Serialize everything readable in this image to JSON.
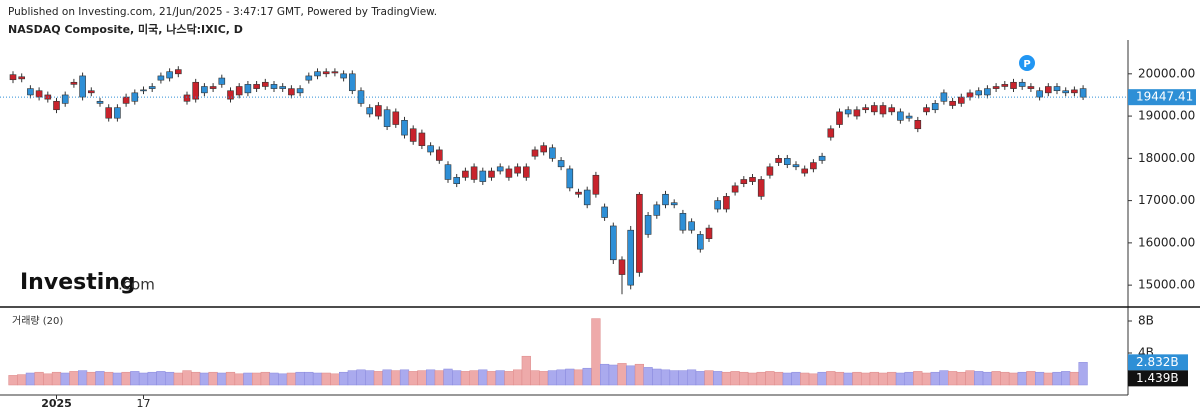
{
  "chart_data": {
    "type": "candlestick",
    "published": "Published on Investing.com, 21/Jun/2025 - 3:47:17 GMT, Powered by TradingView.",
    "title": "NASDAQ Composite, 미국, 나스닥:IXIC, D",
    "logo": {
      "main": "Investing",
      "suffix": ".com"
    },
    "annotation": "P",
    "up_color": "#c8232c",
    "down_color": "#2e8fd6",
    "categories": [
      null,
      null,
      null,
      null,
      null,
      "2025",
      null,
      null,
      null,
      null,
      null,
      null,
      null,
      null,
      null,
      "17",
      null,
      null,
      null,
      null,
      null,
      null,
      null,
      null,
      null,
      null,
      null,
      null,
      null,
      null,
      null,
      null,
      null,
      null,
      null,
      null,
      null,
      null,
      null,
      null,
      null,
      null,
      null,
      null,
      null,
      null,
      null,
      null,
      null,
      null,
      null,
      null,
      null,
      null,
      null,
      null,
      null,
      null,
      null,
      null,
      null,
      null,
      null,
      null,
      null,
      null,
      null,
      null,
      null,
      null,
      null,
      null,
      null,
      null,
      null,
      null,
      null,
      null,
      null,
      null,
      null,
      null,
      null,
      null,
      null,
      null,
      null,
      null,
      null,
      null,
      null,
      null,
      null,
      null,
      null,
      null,
      null,
      null,
      null,
      null,
      null,
      null,
      null,
      null,
      null,
      null,
      null,
      null,
      null,
      null,
      null,
      null,
      null,
      null,
      null,
      null,
      null,
      null,
      null,
      null,
      null,
      null,
      null,
      null
    ],
    "open": [
      19860,
      19880,
      19650,
      19450,
      19400,
      19150,
      19500,
      19750,
      19950,
      19550,
      19350,
      18950,
      19200,
      19300,
      19550,
      19620,
      19700,
      19950,
      20050,
      20000,
      19350,
      19400,
      19700,
      19650,
      19900,
      19400,
      19500,
      19750,
      19650,
      19700,
      19750,
      19700,
      19500,
      19650,
      19950,
      20050,
      20000,
      20020,
      20000,
      20000,
      19600,
      19200,
      19000,
      19150,
      18800,
      18900,
      18400,
      18300,
      18300,
      17950,
      17850,
      17550,
      17550,
      17500,
      17700,
      17550,
      17800,
      17550,
      17650,
      17550,
      18050,
      18150,
      18250,
      17950,
      17750,
      17150,
      17250,
      17150,
      16850,
      16400,
      15250,
      16300,
      15300,
      16650,
      16900,
      17150,
      16950,
      16700,
      16500,
      16200,
      16100,
      17000,
      16800,
      17200,
      17400,
      17450,
      17100,
      17600,
      17900,
      18000,
      17850,
      17650,
      17750,
      18050,
      18500,
      18800,
      19150,
      19000,
      19150,
      19100,
      19050,
      19100,
      19100,
      19000,
      18700,
      19100,
      19300,
      19550,
      19250,
      19300,
      19450,
      19600,
      19650,
      19650,
      19700,
      19650,
      19800,
      19650,
      19600,
      19550,
      19700,
      19600,
      19550,
      19650
    ],
    "high": [
      20060,
      20010,
      19730,
      19680,
      19580,
      19430,
      19580,
      19880,
      20030,
      19680,
      19430,
      19280,
      19280,
      19530,
      19630,
      19700,
      19780,
      20030,
      20130,
      20180,
      19580,
      19880,
      19780,
      19780,
      19980,
      19680,
      19780,
      19830,
      19830,
      19880,
      19830,
      19780,
      19730,
      19730,
      20030,
      20130,
      20130,
      20130,
      20080,
      20080,
      19680,
      19280,
      19330,
      19230,
      19180,
      18980,
      18780,
      18680,
      18380,
      18280,
      17930,
      17630,
      17780,
      17880,
      17780,
      17780,
      17880,
      17830,
      17880,
      17880,
      18280,
      18380,
      18330,
      18030,
      17830,
      17280,
      17330,
      17680,
      16930,
      16480,
      15680,
      16400,
      17200,
      16730,
      16980,
      17230,
      17030,
      16780,
      16580,
      16280,
      16430,
      17080,
      17180,
      17430,
      17580,
      17630,
      17580,
      17880,
      18080,
      18080,
      17930,
      17830,
      17980,
      18130,
      18780,
      19180,
      19230,
      19230,
      19280,
      19330,
      19330,
      19280,
      19180,
      19080,
      18980,
      19280,
      19380,
      19630,
      19430,
      19530,
      19630,
      19680,
      19730,
      19780,
      19830,
      19880,
      19880,
      19780,
      19680,
      19780,
      19780,
      19680,
      19700,
      19730
    ],
    "low": [
      19780,
      19800,
      19420,
      19370,
      19320,
      19070,
      19220,
      19670,
      19370,
      19470,
      19220,
      18870,
      18870,
      19220,
      19270,
      19520,
      19570,
      19770,
      19820,
      19920,
      19270,
      19320,
      19470,
      19570,
      19670,
      19320,
      19420,
      19470,
      19570,
      19620,
      19570,
      19570,
      19420,
      19470,
      19770,
      19870,
      19920,
      19940,
      19820,
      19520,
      19220,
      18970,
      18920,
      18670,
      18720,
      18470,
      18320,
      18220,
      18070,
      17870,
      17420,
      17320,
      17470,
      17420,
      17370,
      17470,
      17620,
      17470,
      17570,
      17470,
      17970,
      18070,
      17920,
      17720,
      17220,
      17070,
      16820,
      17070,
      16520,
      15500,
      14784,
      14900,
      15200,
      16120,
      16570,
      16820,
      16820,
      16220,
      16220,
      15770,
      16020,
      16720,
      16720,
      17120,
      17320,
      17370,
      17020,
      17520,
      17820,
      17770,
      17720,
      17570,
      17670,
      17870,
      18420,
      18720,
      18970,
      18920,
      19070,
      19020,
      18970,
      19020,
      18820,
      18870,
      18620,
      19020,
      19070,
      19270,
      19170,
      19220,
      19370,
      19420,
      19420,
      19570,
      19620,
      19570,
      19620,
      19570,
      19370,
      19470,
      19520,
      19470,
      19470,
      19380
    ],
    "close": [
      19980,
      19930,
      19500,
      19600,
      19500,
      19350,
      19300,
      19800,
      19450,
      19600,
      19300,
      19200,
      18950,
      19450,
      19350,
      19600,
      19650,
      19850,
      19900,
      20100,
      19500,
      19800,
      19550,
      19700,
      19750,
      19600,
      19700,
      19550,
      19750,
      19800,
      19650,
      19650,
      19650,
      19550,
      19850,
      19950,
      20050,
      20050,
      19900,
      19600,
      19300,
      19050,
      19250,
      18750,
      19100,
      18550,
      18700,
      18600,
      18150,
      18200,
      17500,
      17400,
      17700,
      17800,
      17450,
      17700,
      17700,
      17750,
      17800,
      17800,
      18200,
      18300,
      18000,
      17800,
      17300,
      17200,
      16900,
      17600,
      16600,
      15600,
      15600,
      15000,
      17150,
      16200,
      16650,
      16900,
      16900,
      16300,
      16300,
      15850,
      16350,
      16800,
      17100,
      17350,
      17500,
      17550,
      17500,
      17800,
      18000,
      17850,
      17800,
      17750,
      17900,
      17950,
      18700,
      19100,
      19050,
      19150,
      19200,
      19250,
      19250,
      19200,
      18900,
      18950,
      18900,
      19200,
      19150,
      19350,
      19350,
      19450,
      19550,
      19500,
      19500,
      19700,
      19750,
      19800,
      19700,
      19700,
      19450,
      19700,
      19600,
      19550,
      19620,
      19447.41
    ],
    "ylim": [
      14530,
      20800
    ],
    "yticks": [
      {
        "value": 15000,
        "label": "15000.00"
      },
      {
        "value": 16000,
        "label": "16000.00"
      },
      {
        "value": 17000,
        "label": "17000.00"
      },
      {
        "value": 18000,
        "label": "18000.00"
      },
      {
        "value": 19000,
        "label": "19000.00"
      },
      {
        "value": 20000,
        "label": "20000.00"
      }
    ],
    "last_price": {
      "value": 19447.41,
      "label": "19447.41"
    },
    "volume": {
      "title": "거래량 (20)",
      "up_color": "#eeaaaa",
      "down_color": "#aaaaee",
      "values": [
        1.2,
        1.3,
        1.5,
        1.6,
        1.4,
        1.6,
        1.5,
        1.7,
        1.8,
        1.6,
        1.7,
        1.6,
        1.5,
        1.6,
        1.7,
        1.5,
        1.6,
        1.7,
        1.6,
        1.5,
        1.8,
        1.6,
        1.5,
        1.6,
        1.5,
        1.6,
        1.4,
        1.5,
        1.5,
        1.6,
        1.5,
        1.4,
        1.5,
        1.6,
        1.6,
        1.5,
        1.5,
        1.4,
        1.6,
        1.8,
        1.9,
        1.8,
        1.7,
        1.9,
        1.8,
        1.9,
        1.7,
        1.8,
        1.9,
        1.8,
        2.0,
        1.8,
        1.7,
        1.8,
        1.9,
        1.7,
        1.8,
        1.7,
        1.9,
        3.6,
        1.8,
        1.7,
        1.8,
        1.9,
        2.0,
        1.9,
        2.1,
        8.3,
        2.6,
        2.5,
        2.7,
        2.4,
        2.6,
        2.2,
        2.0,
        1.9,
        1.8,
        1.8,
        1.9,
        1.7,
        1.8,
        1.7,
        1.6,
        1.7,
        1.6,
        1.5,
        1.6,
        1.7,
        1.6,
        1.5,
        1.6,
        1.5,
        1.4,
        1.6,
        1.7,
        1.6,
        1.5,
        1.6,
        1.5,
        1.6,
        1.5,
        1.6,
        1.5,
        1.6,
        1.7,
        1.5,
        1.6,
        1.8,
        1.7,
        1.6,
        1.8,
        1.7,
        1.6,
        1.7,
        1.6,
        1.5,
        1.6,
        1.7,
        1.6,
        1.5,
        1.6,
        1.7,
        1.6,
        2.832
      ],
      "ylim": [
        0,
        9
      ],
      "yticks": [
        {
          "value": 8,
          "label": "8B"
        },
        {
          "value": 4,
          "label": "4B"
        }
      ],
      "markers": [
        {
          "value": 2.832,
          "label": "2.832B",
          "color": "#2e8fd6"
        },
        {
          "value": 1.439,
          "label": "1.439B",
          "color": "#111111"
        }
      ]
    }
  }
}
